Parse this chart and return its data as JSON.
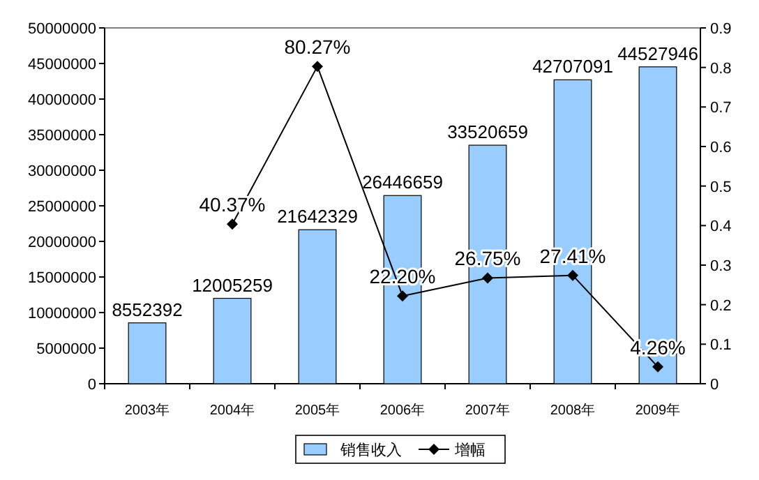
{
  "chart_data": {
    "type": "bar",
    "categories": [
      "2003年",
      "2004年",
      "2005年",
      "2006年",
      "2007年",
      "2008年",
      "2009年"
    ],
    "series": [
      {
        "name": "销售收入",
        "color": "#99ccff",
        "values": [
          8552392,
          12005259,
          21642329,
          26446659,
          33520659,
          42707091,
          44527946
        ]
      },
      {
        "name": "增幅",
        "type": "line",
        "axis": "y2",
        "color": "#000000",
        "marker": "diamond",
        "values": [
          null,
          0.4037,
          0.8027,
          0.222,
          0.2675,
          0.2741,
          0.0426
        ],
        "value_labels": [
          null,
          "40.37%",
          "80.27%",
          "22.20%",
          "26.75%",
          "27.41%",
          "4.26%"
        ]
      }
    ],
    "data_labels": true,
    "ylim": [
      0,
      50000000
    ],
    "yticks": [
      0,
      5000000,
      10000000,
      15000000,
      20000000,
      25000000,
      30000000,
      35000000,
      40000000,
      45000000,
      50000000
    ],
    "y2lim": [
      0,
      0.9
    ],
    "y2ticks": [
      0,
      0.1,
      0.2,
      0.3,
      0.4,
      0.5,
      0.6,
      0.7,
      0.8,
      0.9
    ],
    "legend": "bottom"
  }
}
